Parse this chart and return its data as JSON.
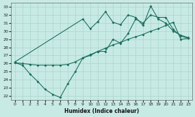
{
  "xlabel": "Humidex (Indice chaleur)",
  "bg_color": "#c8eae4",
  "grid_color": "#a8d4cc",
  "line_color": "#1a6e60",
  "ylim": [
    21.5,
    33.5
  ],
  "xlim": [
    -0.5,
    23.5
  ],
  "yticks": [
    22,
    23,
    24,
    25,
    26,
    27,
    28,
    29,
    30,
    31,
    32,
    33
  ],
  "xticks": [
    0,
    1,
    2,
    3,
    4,
    5,
    6,
    7,
    8,
    9,
    10,
    11,
    12,
    13,
    14,
    15,
    16,
    17,
    18,
    19,
    20,
    21,
    22,
    23
  ],
  "line1_x": [
    0,
    9,
    10,
    11,
    12,
    13,
    14,
    15,
    16,
    17,
    18,
    19,
    20,
    21,
    22,
    23
  ],
  "line1_y": [
    26.2,
    31.5,
    30.3,
    31.2,
    32.4,
    31.1,
    30.8,
    32.0,
    31.7,
    30.7,
    33.1,
    31.5,
    31.0,
    30.0,
    29.5,
    29.2
  ],
  "line2_x": [
    0,
    1,
    2,
    3,
    4,
    5,
    6,
    7,
    8,
    9,
    10,
    11,
    12,
    13,
    14,
    15,
    16,
    17,
    18,
    19,
    20,
    21,
    22,
    23
  ],
  "line2_y": [
    26.1,
    26.0,
    25.9,
    25.8,
    25.8,
    25.8,
    25.8,
    25.9,
    26.2,
    26.7,
    27.1,
    27.5,
    27.9,
    28.3,
    28.6,
    29.0,
    29.3,
    29.6,
    30.0,
    30.3,
    30.7,
    31.1,
    29.0,
    29.1
  ],
  "line3_x": [
    0,
    1,
    2,
    3,
    4,
    5,
    6,
    7,
    8,
    9,
    10,
    11,
    12,
    13,
    14,
    15,
    16,
    17,
    18,
    19,
    20,
    21,
    22,
    23
  ],
  "line3_y": [
    26.1,
    25.8,
    24.7,
    23.8,
    22.8,
    22.2,
    21.8,
    23.5,
    25.0,
    26.7,
    27.0,
    27.5,
    27.5,
    29.0,
    28.5,
    29.7,
    31.5,
    31.0,
    32.0,
    31.7,
    31.7,
    30.2,
    29.4,
    29.1
  ]
}
